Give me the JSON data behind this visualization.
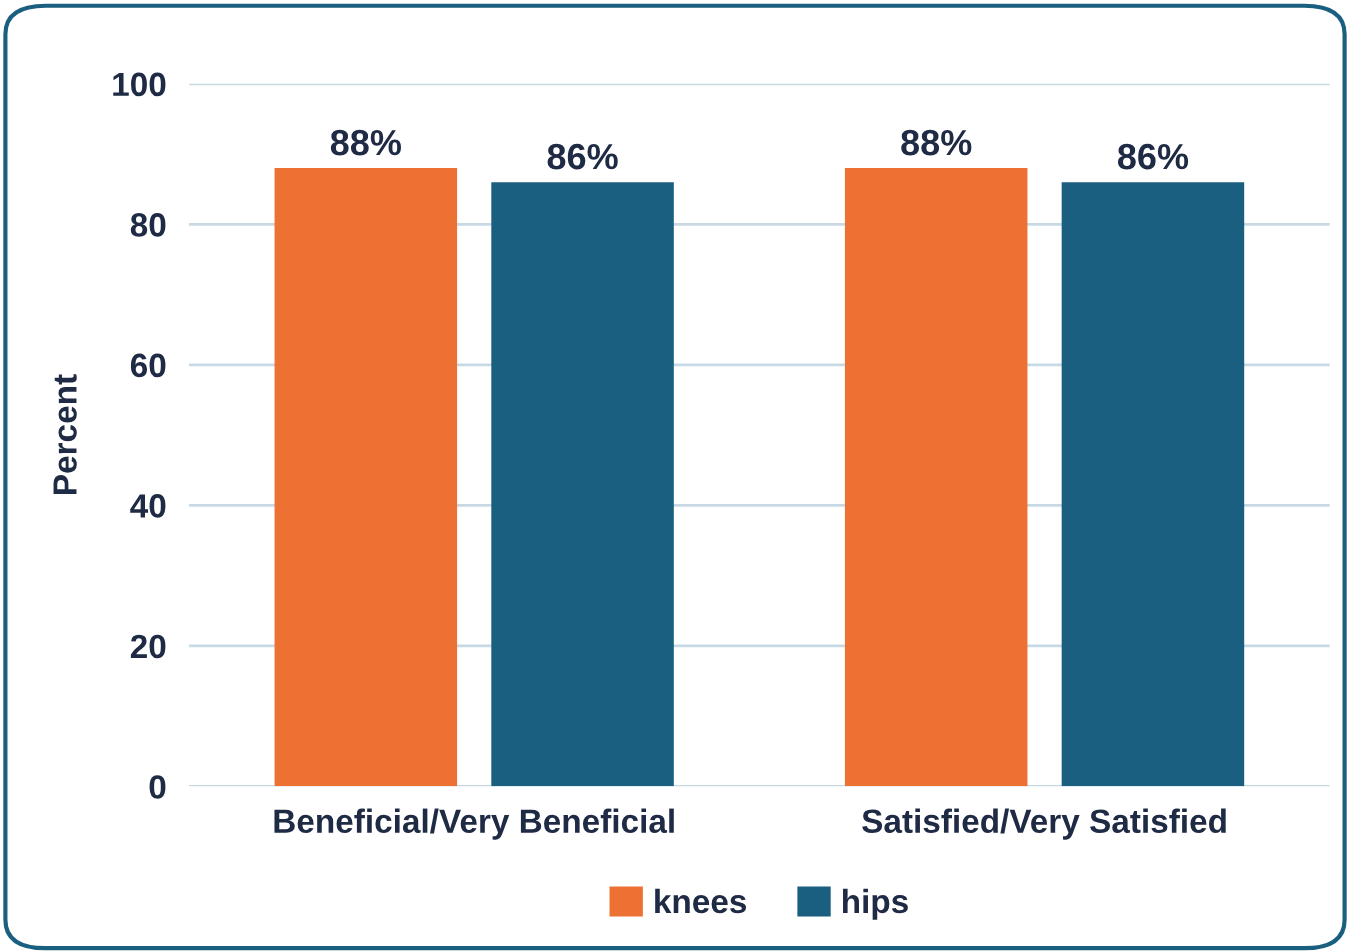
{
  "chart_data": {
    "type": "bar",
    "ylabel": "Percent",
    "categories": [
      "Beneficial/Very Beneficial",
      "Satisfied/Very Satisfied"
    ],
    "series": [
      {
        "name": "knees",
        "color": "#ed7133",
        "values": [
          88,
          88
        ],
        "value_labels": [
          "88%",
          "88%"
        ]
      },
      {
        "name": "hips",
        "color": "#1a5f80",
        "values": [
          86,
          86
        ],
        "value_labels": [
          "86%",
          "86%"
        ]
      }
    ],
    "ylim": [
      0,
      100
    ],
    "yticks": [
      0,
      20,
      40,
      60,
      80,
      100
    ],
    "grid": "y",
    "legend": "bottom"
  }
}
